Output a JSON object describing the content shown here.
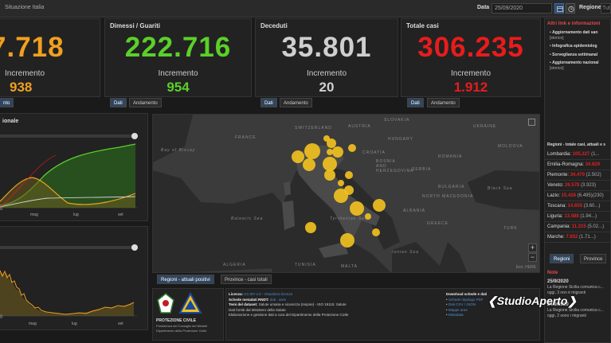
{
  "topbar": {
    "title": "Situazione Italia",
    "date_label": "Data",
    "date_value": "25/09/2020",
    "region_label": "Regione",
    "region_value": "Tut"
  },
  "cards": [
    {
      "label": "",
      "value": "7.718",
      "inc_label": "Incremento",
      "inc_value": "938",
      "color": "#f0a020"
    },
    {
      "label": "Dimessi / Guariti",
      "value": "222.716",
      "inc_label": "Incremento",
      "inc_value": "954",
      "color": "#5bd02a"
    },
    {
      "label": "Deceduti",
      "value": "35.801",
      "inc_label": "Incremento",
      "inc_value": "20",
      "color": "#cfcfcf"
    },
    {
      "label": "Totale casi",
      "value": "306.235",
      "inc_label": "Incremento",
      "inc_value": "1.912",
      "color": "#e81c1c"
    }
  ],
  "card_tabs": {
    "c1": "nto",
    "dati": "Dati",
    "andamento": "Andamento"
  },
  "left_chart_top": {
    "title": "ionale",
    "x_ticks": [
      "mag",
      "lug",
      "set"
    ],
    "y_tick": "0"
  },
  "left_chart_bottom": {
    "x_ticks": [
      "mag",
      "lug",
      "set"
    ],
    "y_tick": "0"
  },
  "map": {
    "labels": {
      "france": "FRANCE",
      "switzerland": "SWITZERLAND",
      "austria": "AUSTRIA",
      "slovakia": "SLOVAKIA",
      "ukraine": "UKRAINE",
      "moldova": "MOLDOVA",
      "hungary": "HUNGARY",
      "croatia": "CROATIA",
      "bosnia": "BOSNIA AND HERZEGOVINA",
      "romania": "ROMANIA",
      "serbia": "SERBIA",
      "bulgaria": "BULGARIA",
      "north_macedonia": "NORTH MACEDONIA",
      "albania": "ALBANIA",
      "greece": "GREECE",
      "algeria": "ALGERIA",
      "tunisia": "TUNISIA",
      "balearic": "Balearic Sea",
      "bay": "Bay of Biscay",
      "tyrrhenian": "Tyrrhenian Sea",
      "ionian": "Ionian Sea",
      "black_sea": "Black Sea",
      "malta": "MALTA",
      "turkey": "TURK"
    },
    "esri": "Esri, HERE",
    "tab_regioni": "Regioni - attuali positivi",
    "tab_province": "Province - casi totali",
    "marker_color": "#f0c020"
  },
  "right_panel": {
    "links_title": "Altri link e informazioni",
    "links": [
      {
        "title": "Aggiornamento dati san",
        "sub": "[storico]"
      },
      {
        "title": "Infografica epidemiolog",
        "sub": ""
      },
      {
        "title": "Sorveglianza settimanal",
        "sub": ""
      },
      {
        "title": "Aggiornamento nazional",
        "sub": "[storico]"
      }
    ],
    "regions_title": "Regioni - totale casi, attuali e s",
    "regions": [
      {
        "name": "Lombardia:",
        "value": "105.227",
        "extra": "(1..."
      },
      {
        "name": "Emilia-Romagna:",
        "value": "34.829",
        "extra": ""
      },
      {
        "name": "Piemonte:",
        "value": "34.479",
        "extra": "(2.502)"
      },
      {
        "name": "Veneto:",
        "value": "26.578",
        "extra": "(3.923)"
      },
      {
        "name": "Lazio:",
        "value": "15.426",
        "extra": "(6.495)(230)"
      },
      {
        "name": "Toscana:",
        "value": "14.655",
        "extra": "(3.60...)"
      },
      {
        "name": "Liguria:",
        "value": "13.588",
        "extra": "(1.94...)"
      },
      {
        "name": "Campania:",
        "value": "11.215",
        "extra": "(5.02...)"
      },
      {
        "name": "Marche:",
        "value": "7.652",
        "extra": "(1.71...)"
      }
    ],
    "tab_regioni": "Regioni",
    "tab_province": "Province",
    "notes_title": "Note",
    "notes": [
      {
        "date": "25/9/2020",
        "text": "La Regione Sicilia comunica c... oggi, 3 non è migranti"
      },
      {
        "date": "24/9/2020",
        "text": "La Regione Sicilia comunica c... oggi, 2 sono i migranti"
      }
    ]
  },
  "footer": {
    "logo_line1": "PROTEZIONE CIVILE",
    "logo_line2": "Presidenza del Consiglio dei Ministri",
    "logo_line3": "Dipartimento della Protezione Civile",
    "license_label": "Licenza:",
    "license_value": "CC-BY-4.0 - Visualizza licenza",
    "meta_label": "Schede metadati RNDT:",
    "meta_value": "dati - aree",
    "dataset_label": "Temi del dataset:",
    "dataset_value": "Salute umana e sicurezza (Inspire) - ISO 19115: Salute",
    "source_line": "Dati forniti dal Ministero della Salute",
    "elab_line": "Elaborazione e gestione dati a cura del Dipartimento della Protezione Civile",
    "download_title": "Download schede e dati",
    "download_links": [
      "Schede riepilogo PDF",
      "Dati CSV / JSON",
      "Mappe aree",
      "Metadata"
    ]
  },
  "watermark": "StudioAperto"
}
